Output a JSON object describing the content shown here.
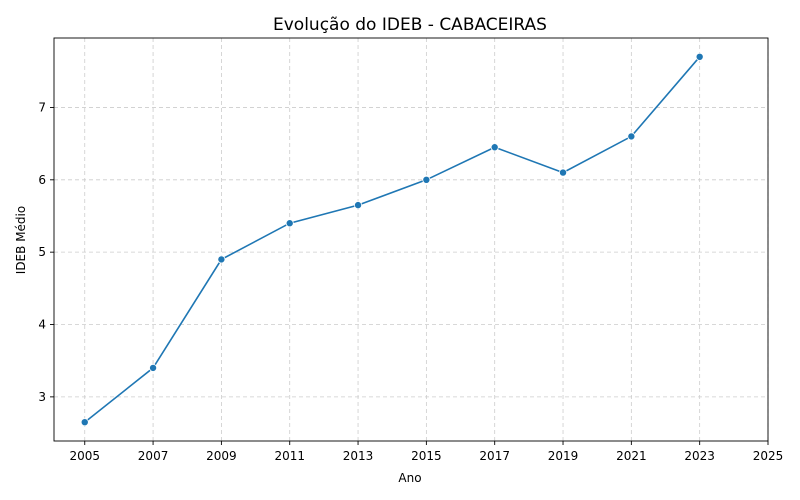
{
  "chart_data": {
    "type": "line",
    "title": "Evolução do IDEB - CABACEIRAS",
    "xlabel": "Ano",
    "ylabel": "IDEB Médio",
    "x_ticks": [
      2005,
      2007,
      2009,
      2011,
      2013,
      2015,
      2017,
      2019,
      2021,
      2023,
      2025
    ],
    "y_ticks": [
      3,
      4,
      5,
      6,
      7
    ],
    "xlim": [
      2004.1,
      2025
    ],
    "ylim": [
      2.39,
      7.96
    ],
    "grid": true,
    "marker": "circle",
    "series": [
      {
        "color": "#1f77b4",
        "x": [
          2005,
          2007,
          2009,
          2011,
          2013,
          2015,
          2017,
          2019,
          2021,
          2023
        ],
        "y": [
          2.65,
          3.4,
          4.9,
          5.4,
          5.65,
          6.0,
          6.45,
          6.1,
          6.6,
          7.7
        ]
      }
    ]
  }
}
